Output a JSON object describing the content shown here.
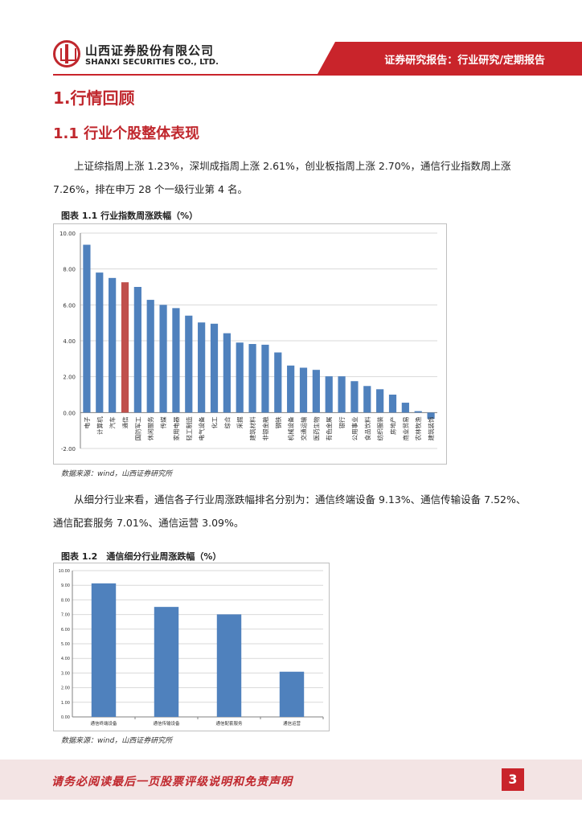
{
  "header": {
    "company_cn": "山西证券股份有限公司",
    "company_en": "SHANXI SECURITIES CO., LTD.",
    "report_type": "证券研究报告：行业研究/定期报告"
  },
  "section": {
    "h1": "1.行情回顾",
    "h2": "1.1 行业个股整体表现"
  },
  "paragraph1": "上证综指周上涨 1.23%，深圳成指周上涨 2.61%，创业板指周上涨 2.70%，通信行业指数周上涨 7.26%，排在申万 28 个一级行业第 4 名。",
  "figure1": {
    "title": "图表 1.1 行业指数周涨跌幅（%）",
    "source": "数据来源：wind，山西证券研究所"
  },
  "paragraph2": "从细分行业来看，通信各子行业周涨跌幅排名分别为：通信终端设备 9.13%、通信传输设备 7.52%、通信配套服务 7.01%、通信运营 3.09%。",
  "figure2": {
    "title": "图表 1.2　通信细分行业周涨跌幅（%）",
    "source": "数据来源：wind，山西证券研究所"
  },
  "footer": {
    "disclaimer": "请务必阅读最后一页股票评级说明和免责声明",
    "page": "3"
  },
  "colors": {
    "bar": "#4f81bd",
    "highlight": "#c0504d",
    "brand": "#c9242b"
  },
  "chart_data": [
    {
      "type": "bar",
      "title": "图表 1.1 行业指数周涨跌幅（%）",
      "categories": [
        "电子",
        "计算机",
        "汽车",
        "通信",
        "国防军工",
        "休闲服务",
        "传媒",
        "家用电器",
        "轻工制造",
        "电气设备",
        "化工",
        "综合",
        "采掘",
        "建筑材料",
        "非银金融",
        "钢铁",
        "机械设备",
        "交通运输",
        "医药生物",
        "有色金属",
        "银行",
        "公用事业",
        "食品饮料",
        "纺织服装",
        "房地产",
        "商业贸易",
        "农林牧渔",
        "建筑装饰"
      ],
      "tick_labels": [
        "电子",
        "计算机",
        "汽车",
        "通信",
        "国防军工",
        "休闲服务",
        "传媒",
        "家用电器",
        "轻工制造",
        "电气设备",
        "化工",
        "综合",
        "采掘",
        "建筑材料",
        "非银金融",
        "钢铁",
        "机械设备",
        "交通运输",
        "医药生物",
        "有色金属",
        "银行",
        "公用事业",
        "食品饮料",
        "纺织服装",
        "房地产",
        "商业贸易",
        "农林牧渔",
        "建筑装饰"
      ],
      "values": [
        9.35,
        7.8,
        7.5,
        7.26,
        7.0,
        6.28,
        6.0,
        5.82,
        5.4,
        5.02,
        4.95,
        4.42,
        3.9,
        3.82,
        3.78,
        3.35,
        2.62,
        2.5,
        2.38,
        2.02,
        2.02,
        1.75,
        1.48,
        1.3,
        1.0,
        0.55,
        0.08,
        -0.35
      ],
      "highlight": "通信",
      "ylim": [
        -2,
        10
      ],
      "yticks": [
        "10.00",
        "8.00",
        "6.00",
        "4.00",
        "2.00",
        "0.00",
        "-2.00"
      ],
      "ytick_values": [
        10,
        8,
        6,
        4,
        2,
        0,
        -2
      ],
      "grid": true
    },
    {
      "type": "bar",
      "title": "图表 1.2　通信细分行业周涨跌幅（%）",
      "categories": [
        "通信终端设备",
        "通信传输设备",
        "通信配套服务",
        "通信运营"
      ],
      "values": [
        9.13,
        7.52,
        7.01,
        3.09
      ],
      "ylim": [
        0,
        10
      ],
      "yticks": [
        "10.00",
        "9.00",
        "8.00",
        "7.00",
        "6.00",
        "5.00",
        "4.00",
        "3.00",
        "2.00",
        "1.00",
        "0.00"
      ],
      "ytick_values": [
        10,
        9,
        8,
        7,
        6,
        5,
        4,
        3,
        2,
        1,
        0
      ],
      "grid": true
    }
  ]
}
